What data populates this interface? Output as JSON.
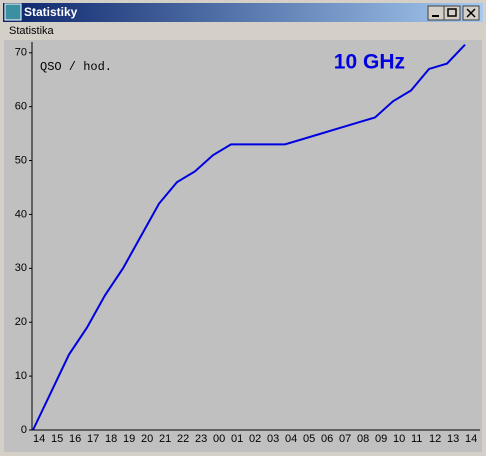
{
  "window": {
    "title": "Statistiky",
    "menu": [
      "Statistika"
    ]
  },
  "chart_data": {
    "type": "line",
    "annotations": [
      "QSO / hod.",
      "10 GHz"
    ],
    "categories": [
      "14",
      "15",
      "16",
      "17",
      "18",
      "19",
      "20",
      "21",
      "22",
      "23",
      "00",
      "01",
      "02",
      "03",
      "04",
      "05",
      "06",
      "07",
      "08",
      "09",
      "10",
      "11",
      "12",
      "13",
      "14"
    ],
    "series": [
      {
        "color": "#0000e0",
        "values": [
          0,
          7,
          14,
          19,
          25,
          30,
          36,
          42,
          46,
          48,
          51,
          53,
          53,
          53,
          53,
          54,
          55,
          56,
          57,
          58,
          61,
          63,
          67,
          68,
          71.5
        ]
      }
    ],
    "ylim": [
      0,
      72
    ],
    "yticks": [
      0,
      10,
      20,
      30,
      40,
      50,
      60,
      70
    ]
  }
}
